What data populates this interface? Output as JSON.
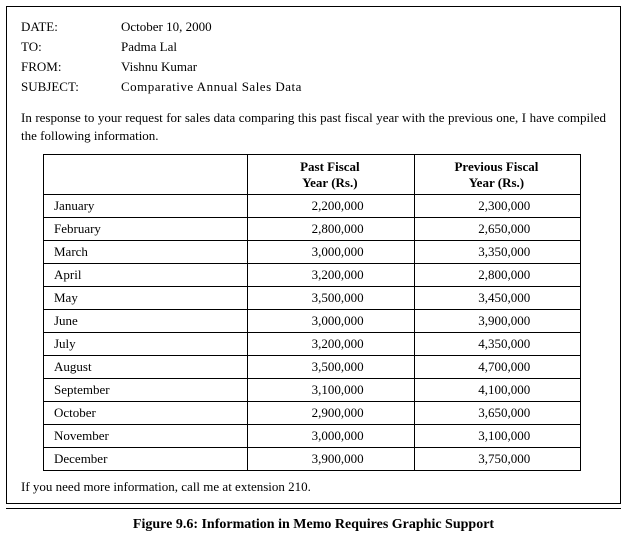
{
  "header": {
    "date_label": "DATE:",
    "date_value": "October 10, 2000",
    "to_label": "TO:",
    "to_value": "Padma Lal",
    "from_label": "FROM:",
    "from_value": "Vishnu Kumar",
    "subject_label": "SUBJECT:",
    "subject_value": "Comparative  Annual  Sales Data"
  },
  "body": "In response to your request for sales data comparing this past fiscal year with the previous one, I have compiled the following information.",
  "table": {
    "col_month": "",
    "col_past_line1": "Past  Fiscal",
    "col_past_line2": "Year (Rs.)",
    "col_prev_line1": "Previous Fiscal",
    "col_prev_line2": "Year (Rs.)",
    "rows": [
      {
        "month": "January",
        "past": "2,200,000",
        "prev": "2,300,000"
      },
      {
        "month": "February",
        "past": "2,800,000",
        "prev": "2,650,000"
      },
      {
        "month": "March",
        "past": "3,000,000",
        "prev": "3,350,000"
      },
      {
        "month": "April",
        "past": "3,200,000",
        "prev": "2,800,000"
      },
      {
        "month": "May",
        "past": "3,500,000",
        "prev": "3,450,000"
      },
      {
        "month": "June",
        "past": "3,000,000",
        "prev": "3,900,000"
      },
      {
        "month": "July",
        "past": "3,200,000",
        "prev": "4,350,000"
      },
      {
        "month": "August",
        "past": "3,500,000",
        "prev": "4,700,000"
      },
      {
        "month": "September",
        "past": "3,100,000",
        "prev": "4,100,000"
      },
      {
        "month": "October",
        "past": "2,900,000",
        "prev": "3,650,000"
      },
      {
        "month": "November",
        "past": "3,000,000",
        "prev": "3,100,000"
      },
      {
        "month": "December",
        "past": "3,900,000",
        "prev": "3,750,000"
      }
    ]
  },
  "footer": "If you need more information, call me at extension 210.",
  "caption": "Figure 9.6: Information in Memo Requires Graphic Support"
}
